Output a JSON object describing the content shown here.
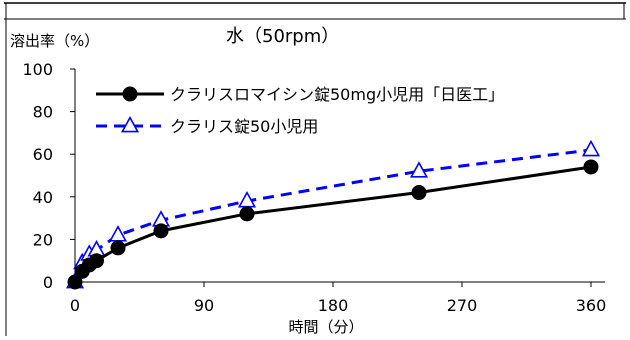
{
  "chart_data": {
    "type": "line",
    "title": "水（50rpm）",
    "ylabel": "溶出率（%）",
    "xlabel": "時間（分）",
    "xlim": [
      0,
      360
    ],
    "ylim": [
      0,
      100
    ],
    "xticks": [
      0,
      90,
      180,
      270,
      360
    ],
    "yticks": [
      0,
      20,
      40,
      60,
      80,
      100
    ],
    "grid": false,
    "legend_position": "top-left",
    "series": [
      {
        "name": "クラリスロマイシン錠50mg小児用「日医工」",
        "color": "#000000",
        "marker": "filled-circle",
        "line": "solid",
        "x": [
          0,
          5,
          10,
          15,
          30,
          60,
          120,
          240,
          360
        ],
        "values": [
          0,
          5,
          8,
          10,
          16,
          24,
          32,
          42,
          54
        ]
      },
      {
        "name": "クラリス錠50小児用",
        "color": "#0000FF",
        "marker": "open-triangle",
        "line": "dashed",
        "x": [
          0,
          5,
          10,
          15,
          30,
          60,
          120,
          240,
          360
        ],
        "values": [
          0,
          9,
          13,
          15,
          22,
          29,
          38,
          52,
          62
        ]
      }
    ]
  }
}
